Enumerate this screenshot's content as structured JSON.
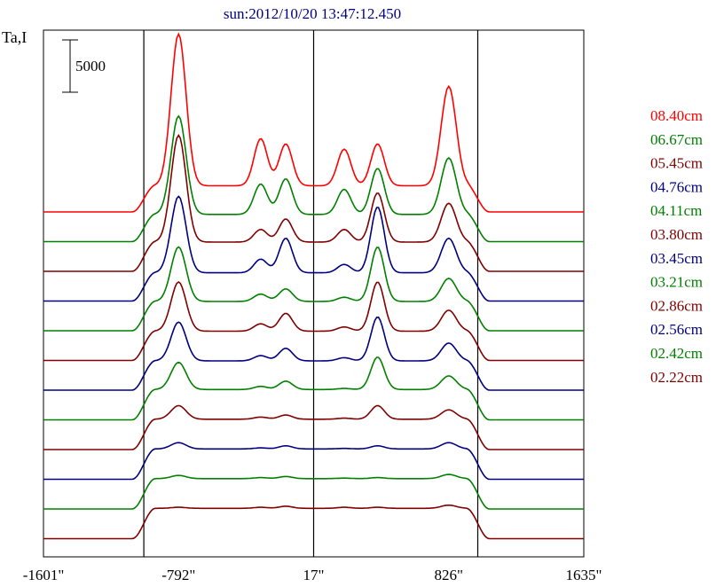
{
  "title": "sun:2012/10/20 13:47:12.450",
  "y_axis_label": "Ta,I",
  "scale_bar_label": "5000",
  "x_tick_labels": [
    "-1601\"",
    "-792\"",
    "17\"",
    "826\"",
    "1635\""
  ],
  "legend": [
    {
      "label": "08.40cm",
      "color": "#ff0000"
    },
    {
      "label": "06.67cm",
      "color": "#008000"
    },
    {
      "label": "05.45cm",
      "color": "#800000"
    },
    {
      "label": "04.76cm",
      "color": "#000080"
    },
    {
      "label": "04.11cm",
      "color": "#008000"
    },
    {
      "label": "03.80cm",
      "color": "#800000"
    },
    {
      "label": "03.45cm",
      "color": "#000080"
    },
    {
      "label": "03.21cm",
      "color": "#008000"
    },
    {
      "label": "02.86cm",
      "color": "#800000"
    },
    {
      "label": "02.56cm",
      "color": "#000080"
    },
    {
      "label": "02.42cm",
      "color": "#008000"
    },
    {
      "label": "02.22cm",
      "color": "#800000"
    }
  ],
  "chart_data": {
    "type": "line",
    "title": "sun:2012/10/20 13:47:12.450",
    "xlabel": "",
    "ylabel": "Ta,I",
    "x_unit": "arcsec",
    "xlim": [
      -1601,
      1635
    ],
    "x_ticks": [
      -1601,
      -792,
      17,
      826,
      1635
    ],
    "vertical_lines_x": [
      -1000,
      17,
      1000
    ],
    "scale_bar": 5000,
    "stacked_offset_series": true,
    "grid": false,
    "legend_placement": "right",
    "series": [
      {
        "name": "08.40cm",
        "color": "#ff0000",
        "profile": {
          "base": 0,
          "plateau": 2500,
          "peaks": [
            [
              -792,
              17000
            ],
            [
              -300,
              7000
            ],
            [
              -150,
              6500
            ],
            [
              200,
              6000
            ],
            [
              400,
              6500
            ],
            [
              826,
              12000
            ]
          ]
        }
      },
      {
        "name": "06.67cm",
        "color": "#008000",
        "profile": {
          "base": 0,
          "plateau": 2600,
          "peaks": [
            [
              -792,
              12000
            ],
            [
              -300,
              5500
            ],
            [
              -150,
              6000
            ],
            [
              200,
              5000
            ],
            [
              400,
              7000
            ],
            [
              826,
              8000
            ]
          ]
        }
      },
      {
        "name": "05.45cm",
        "color": "#800000",
        "profile": {
          "base": 0,
          "plateau": 2800,
          "peaks": [
            [
              -792,
              13000
            ],
            [
              -300,
              4000
            ],
            [
              -150,
              5000
            ],
            [
              200,
              4000
            ],
            [
              400,
              7500
            ],
            [
              826,
              6500
            ]
          ]
        }
      },
      {
        "name": "04.76cm",
        "color": "#000080",
        "profile": {
          "base": 0,
          "plateau": 2700,
          "peaks": [
            [
              -792,
              10000
            ],
            [
              -300,
              4000
            ],
            [
              -150,
              6000
            ],
            [
              200,
              3500
            ],
            [
              400,
              9000
            ],
            [
              826,
              6000
            ]
          ]
        }
      },
      {
        "name": "04.11cm",
        "color": "#008000",
        "profile": {
          "base": 0,
          "plateau": 2800,
          "peaks": [
            [
              -792,
              8000
            ],
            [
              -300,
              3500
            ],
            [
              -150,
              4000
            ],
            [
              200,
              3200
            ],
            [
              400,
              8000
            ],
            [
              826,
              5000
            ]
          ]
        }
      },
      {
        "name": "03.80cm",
        "color": "#800000",
        "profile": {
          "base": 0,
          "plateau": 2800,
          "peaks": [
            [
              -792,
              7500
            ],
            [
              -300,
              3500
            ],
            [
              -150,
              4500
            ],
            [
              200,
              3200
            ],
            [
              400,
              7500
            ],
            [
              826,
              4800
            ]
          ]
        }
      },
      {
        "name": "03.45cm",
        "color": "#000080",
        "profile": {
          "base": 0,
          "plateau": 2800,
          "peaks": [
            [
              -792,
              6500
            ],
            [
              -300,
              3300
            ],
            [
              -150,
              4000
            ],
            [
              200,
              3100
            ],
            [
              400,
              7000
            ],
            [
              826,
              4500
            ]
          ]
        }
      },
      {
        "name": "03.21cm",
        "color": "#008000",
        "profile": {
          "base": 0,
          "plateau": 2900,
          "peaks": [
            [
              -792,
              5500
            ],
            [
              -300,
              3200
            ],
            [
              -150,
              3700
            ],
            [
              200,
              3000
            ],
            [
              400,
              6000
            ],
            [
              826,
              4200
            ]
          ]
        }
      },
      {
        "name": "02.86cm",
        "color": "#800000",
        "profile": {
          "base": 0,
          "plateau": 2900,
          "peaks": [
            [
              -792,
              4200
            ],
            [
              -300,
              3100
            ],
            [
              -150,
              3300
            ],
            [
              200,
              3000
            ],
            [
              400,
              4200
            ],
            [
              826,
              3800
            ]
          ]
        }
      },
      {
        "name": "02.56cm",
        "color": "#000080",
        "profile": {
          "base": 0,
          "plateau": 2900,
          "peaks": [
            [
              -792,
              3500
            ],
            [
              -300,
              3000
            ],
            [
              -150,
              3200
            ],
            [
              200,
              2950
            ],
            [
              400,
              3200
            ],
            [
              826,
              3500
            ]
          ]
        }
      },
      {
        "name": "02.42cm",
        "color": "#008000",
        "profile": {
          "base": 0,
          "plateau": 2900,
          "peaks": [
            [
              -792,
              3200
            ],
            [
              -300,
              3000
            ],
            [
              -150,
              3100
            ],
            [
              200,
              2950
            ],
            [
              400,
              3000
            ],
            [
              826,
              3300
            ]
          ]
        }
      },
      {
        "name": "02.22cm",
        "color": "#800000",
        "profile": {
          "base": 0,
          "plateau": 2900,
          "peaks": [
            [
              -792,
              3000
            ],
            [
              -300,
              3000
            ],
            [
              -150,
              3100
            ],
            [
              200,
              3000
            ],
            [
              400,
              3000
            ],
            [
              826,
              3200
            ]
          ]
        }
      }
    ]
  }
}
